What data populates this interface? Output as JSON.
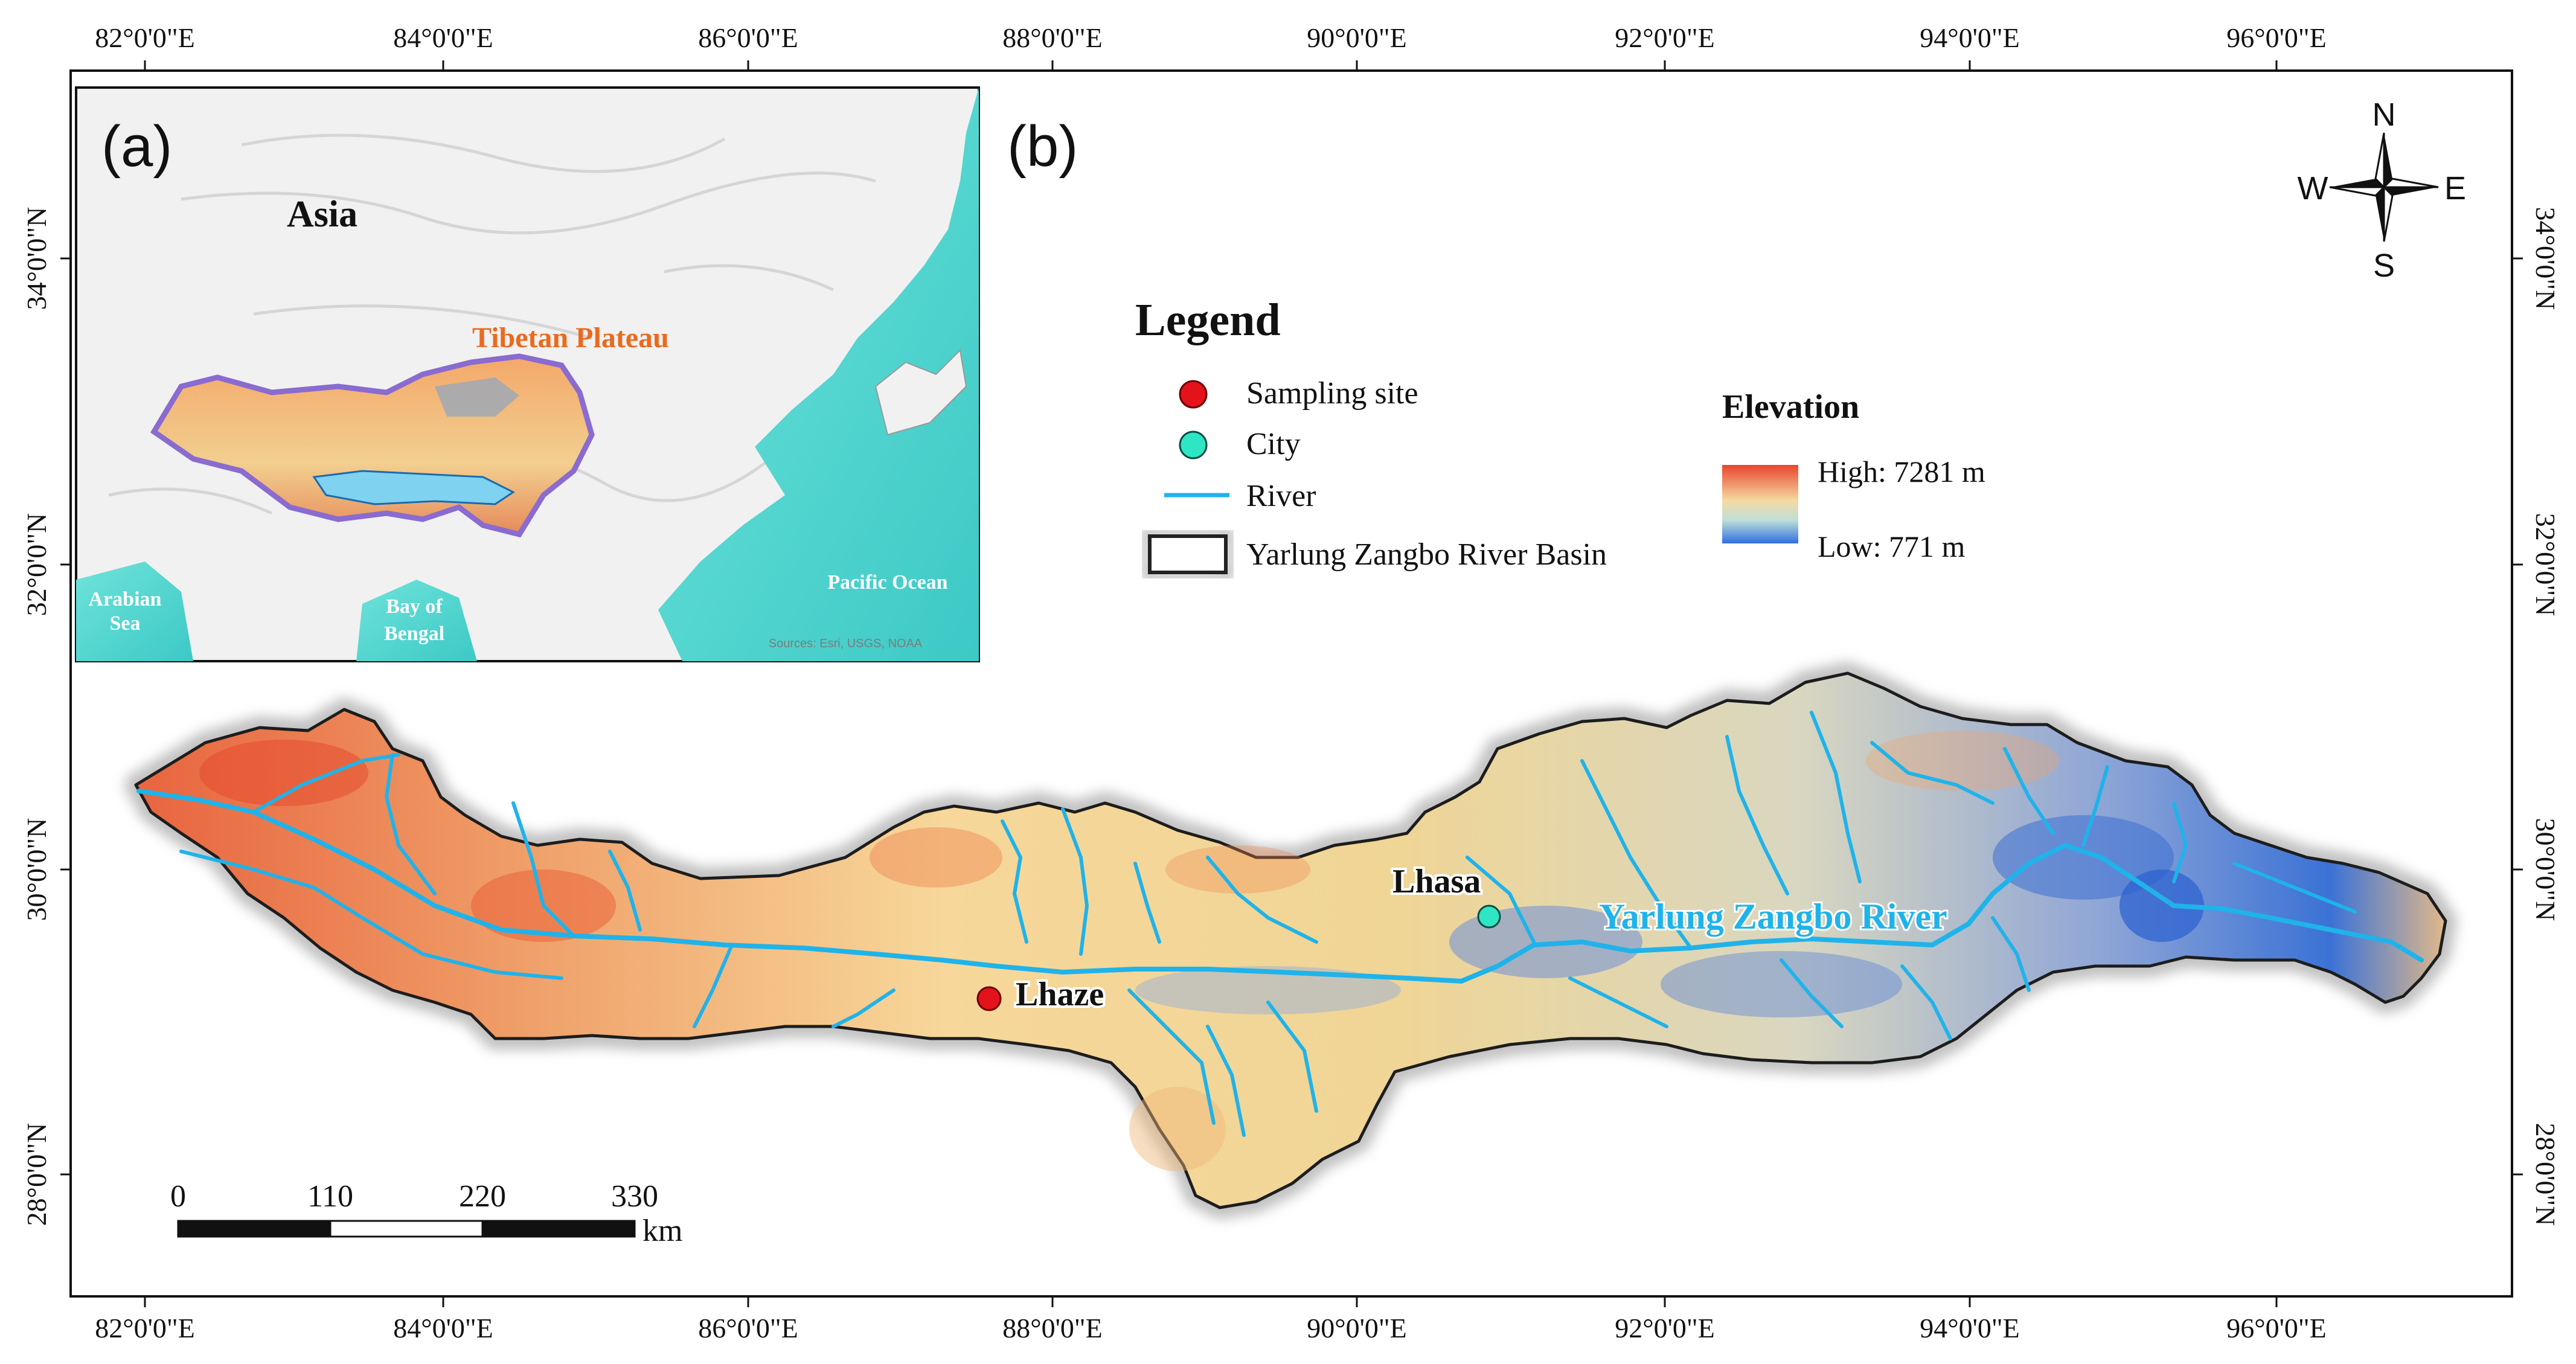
{
  "axes": {
    "longitude_labels": [
      "82°0'0\"E",
      "84°0'0\"E",
      "86°0'0\"E",
      "88°0'0\"E",
      "90°0'0\"E",
      "92°0'0\"E",
      "94°0'0\"E",
      "96°0'0\"E"
    ],
    "latitude_labels": [
      "34°0'0\"N",
      "32°0'0\"N",
      "30°0'0\"N",
      "28°0'0\"N"
    ]
  },
  "inset": {
    "panel_label": "(a)",
    "continent": "Asia",
    "region": "Tibetan Plateau",
    "sea_labels": {
      "arabian_line1": "Arabian",
      "arabian_line2": "Sea",
      "bengal_line1": "Bay of",
      "bengal_line2": "Bengal",
      "pacific": "Pacific Ocean"
    },
    "attribution": "Sources: Esri, USGS, NOAA"
  },
  "main": {
    "panel_label": "(b)",
    "compass": {
      "n": "N",
      "s": "S",
      "e": "E",
      "w": "W"
    },
    "places": {
      "sampling_site": "Lhaze",
      "city": "Lhasa",
      "river": "Yarlung Zangbo River"
    }
  },
  "legend": {
    "title": "Legend",
    "items": {
      "sampling_site": "Sampling site",
      "city": "City",
      "river": "River",
      "basin": "Yarlung Zangbo River Basin"
    },
    "symbol_colors": {
      "sampling_site": "#e3121b",
      "city": "#2ee6c4",
      "river": "#1fb3ea",
      "basin": "#222222"
    }
  },
  "elevation": {
    "title": "Elevation",
    "high": "High: 7281 m",
    "low": "Low: 771 m",
    "ramp_colors": [
      "#e8452e",
      "#f6d9a0",
      "#bfe0d8",
      "#2f6fe0"
    ]
  },
  "scale_bar": {
    "ticks": [
      "0",
      "110",
      "220",
      "330"
    ],
    "unit": "km"
  }
}
